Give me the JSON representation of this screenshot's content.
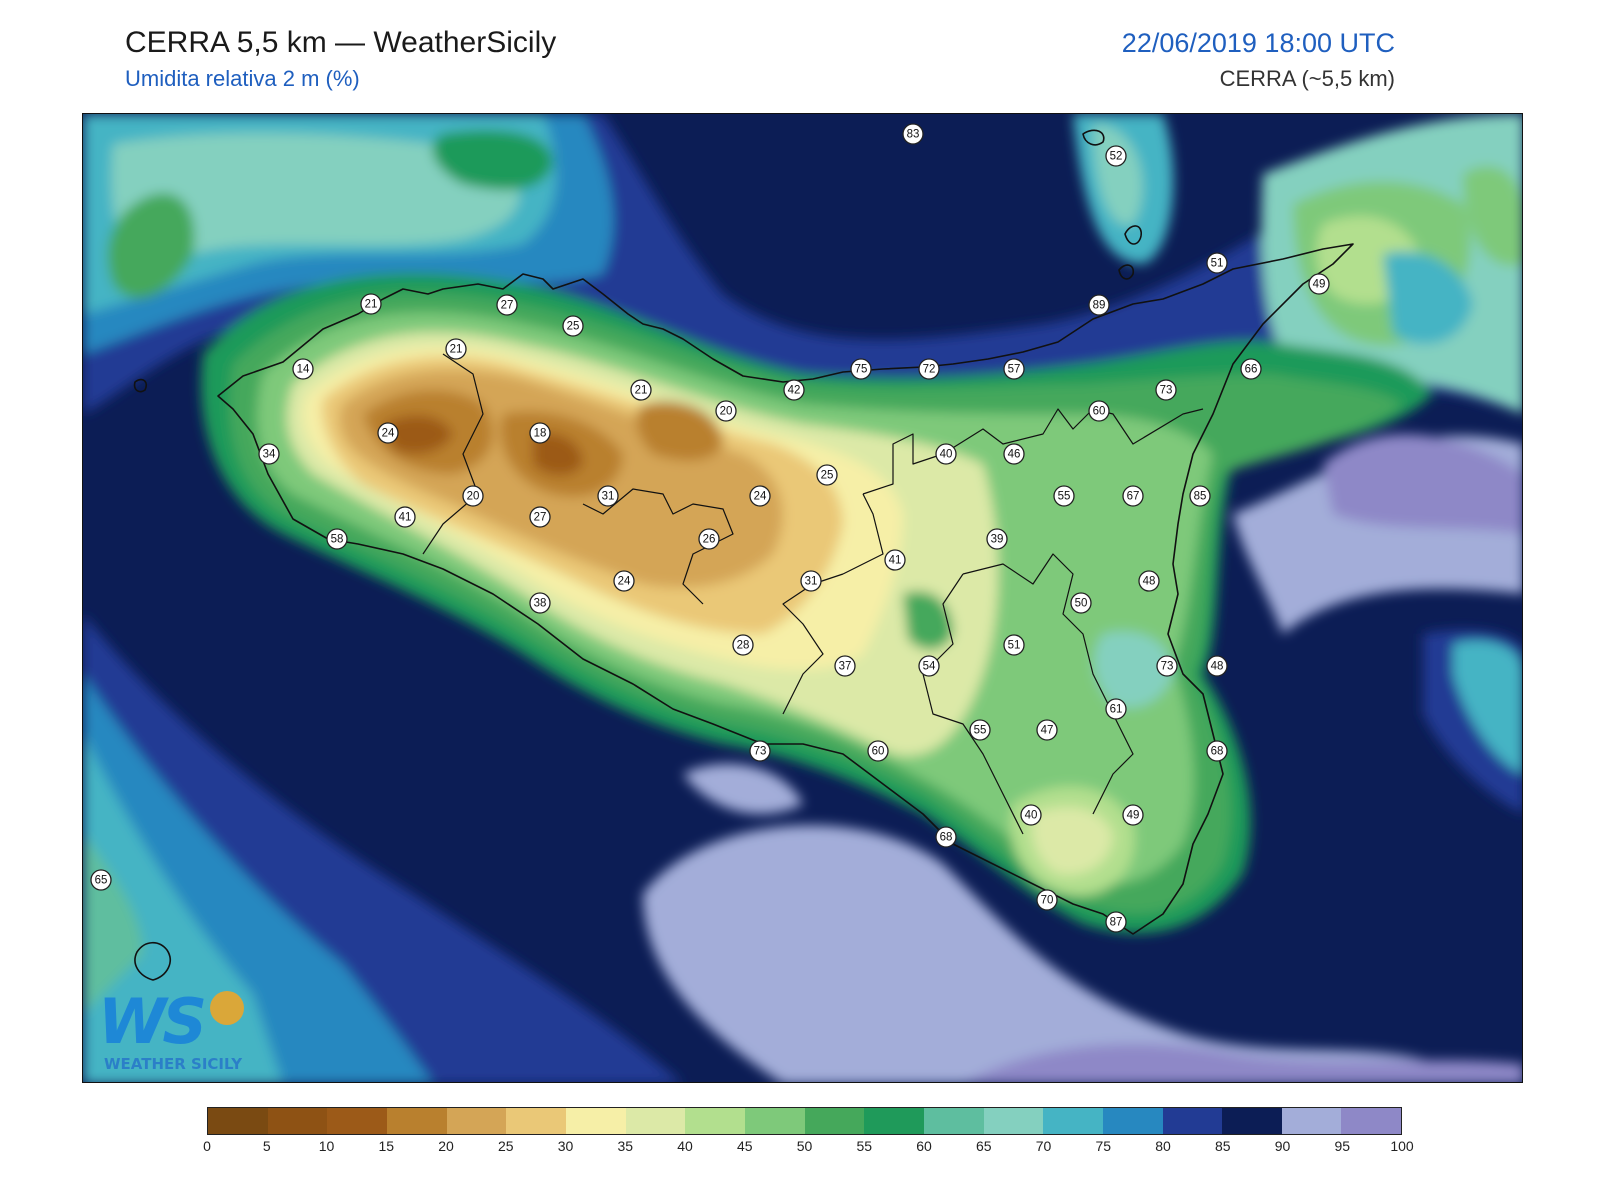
{
  "header": {
    "title": "CERRA 5,5 km — WeatherSicily",
    "subtitle": "Umidita relativa 2 m (%)",
    "datetime": "22/06/2019 18:00 UTC",
    "model": "CERRA (~5,5 km)"
  },
  "colorbar": {
    "ticks": [
      "0",
      "5",
      "10",
      "15",
      "20",
      "25",
      "30",
      "35",
      "40",
      "45",
      "50",
      "55",
      "60",
      "65",
      "70",
      "75",
      "80",
      "85",
      "90",
      "95",
      "100"
    ],
    "colors": [
      "#7a4a12",
      "#8e5214",
      "#9c5a18",
      "#b9802e",
      "#d4a556",
      "#eac877",
      "#f6efa7",
      "#dce9a7",
      "#b2df8e",
      "#7ec97a",
      "#45a85b",
      "#1f9a5a",
      "#5ebe9f",
      "#84d0bf",
      "#45b4c4",
      "#2788c0",
      "#223b94",
      "#0c1d55",
      "#a3add9",
      "#8e88c7"
    ]
  },
  "stations": [
    {
      "value": "83"
    },
    {
      "value": "52"
    },
    {
      "value": "51"
    },
    {
      "value": "49"
    },
    {
      "value": "89"
    },
    {
      "value": "21"
    },
    {
      "value": "27"
    },
    {
      "value": "25"
    },
    {
      "value": "21"
    },
    {
      "value": "14"
    },
    {
      "value": "21"
    },
    {
      "value": "20"
    },
    {
      "value": "42"
    },
    {
      "value": "75"
    },
    {
      "value": "72"
    },
    {
      "value": "57"
    },
    {
      "value": "73"
    },
    {
      "value": "66"
    },
    {
      "value": "60"
    },
    {
      "value": "24"
    },
    {
      "value": "18"
    },
    {
      "value": "34"
    },
    {
      "value": "40"
    },
    {
      "value": "46"
    },
    {
      "value": "25"
    },
    {
      "value": "20"
    },
    {
      "value": "31"
    },
    {
      "value": "24"
    },
    {
      "value": "55"
    },
    {
      "value": "67"
    },
    {
      "value": "85"
    },
    {
      "value": "41"
    },
    {
      "value": "27"
    },
    {
      "value": "58"
    },
    {
      "value": "26"
    },
    {
      "value": "39"
    },
    {
      "value": "41"
    },
    {
      "value": "24"
    },
    {
      "value": "31"
    },
    {
      "value": "48"
    },
    {
      "value": "38"
    },
    {
      "value": "50"
    },
    {
      "value": "28"
    },
    {
      "value": "51"
    },
    {
      "value": "48"
    },
    {
      "value": "37"
    },
    {
      "value": "54"
    },
    {
      "value": "73"
    },
    {
      "value": "61"
    },
    {
      "value": "55"
    },
    {
      "value": "47"
    },
    {
      "value": "73"
    },
    {
      "value": "60"
    },
    {
      "value": "68"
    },
    {
      "value": "40"
    },
    {
      "value": "49"
    },
    {
      "value": "68"
    },
    {
      "value": "65"
    },
    {
      "value": "70"
    },
    {
      "value": "87"
    }
  ],
  "logo": {
    "initials": "WS",
    "name": "WEATHER SICILY"
  }
}
